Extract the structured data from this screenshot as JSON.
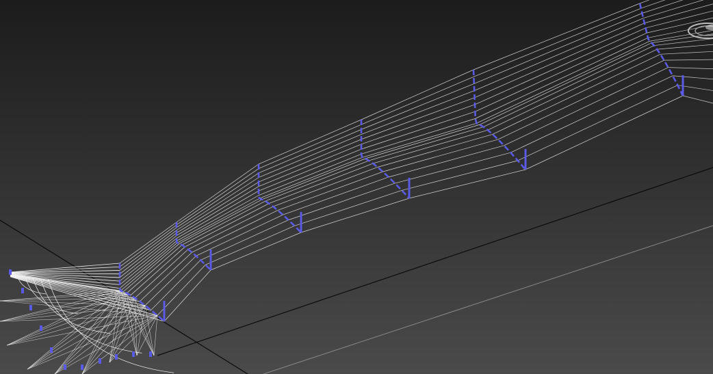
{
  "viewport": {
    "background_top": "#1c1c1c",
    "background_bottom": "#4a4a4a",
    "grid_line_color": "#0a0a0a",
    "grid_highlight_color": "#8a8a8a",
    "wire_color": "#f2f2f2",
    "selection_color": "#5a5ae6",
    "gizmo_icon": "viewcube-ring-icon"
  }
}
